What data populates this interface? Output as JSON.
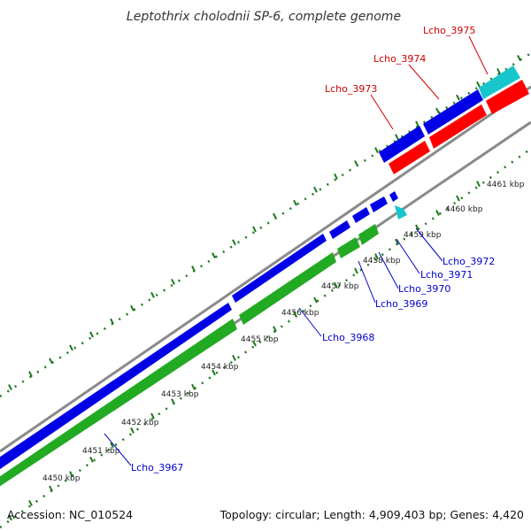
{
  "title": "Leptothrix cholodnii SP-6, complete genome",
  "accession": "Accession: NC_010524",
  "summary": "Topology: circular; Length: 4,909,403 bp; Genes: 4,420",
  "colors": {
    "forward_gene": "#0000e6",
    "reverse_gene": "#ff0000",
    "other_gene": "#16c6cc",
    "cds": "#22aa22",
    "backbone": "#8a8a8a",
    "tick": "#1f7a1f",
    "label_forward": "#0000cc",
    "label_reverse": "#cc0000"
  },
  "ruler": {
    "unit": "kbp",
    "labels": [
      "4450 kbp",
      "4451 kbp",
      "4452 kbp",
      "4453 kbp",
      "4454 kbp",
      "4455 kbp",
      "4456 kbp",
      "4457 kbp",
      "4458 kbp",
      "4459 kbp",
      "4460 kbp",
      "4461 kbp"
    ]
  },
  "genes_reverse_strand_labels": [
    {
      "name": "Lcho_3973",
      "strand": "outer"
    },
    {
      "name": "Lcho_3974",
      "strand": "outer"
    },
    {
      "name": "Lcho_3975",
      "strand": "outer"
    }
  ],
  "genes_forward_strand_labels": [
    {
      "name": "Lcho_3967"
    },
    {
      "name": "Lcho_3968"
    },
    {
      "name": "Lcho_3969"
    },
    {
      "name": "Lcho_3970"
    },
    {
      "name": "Lcho_3971"
    },
    {
      "name": "Lcho_3972"
    }
  ]
}
